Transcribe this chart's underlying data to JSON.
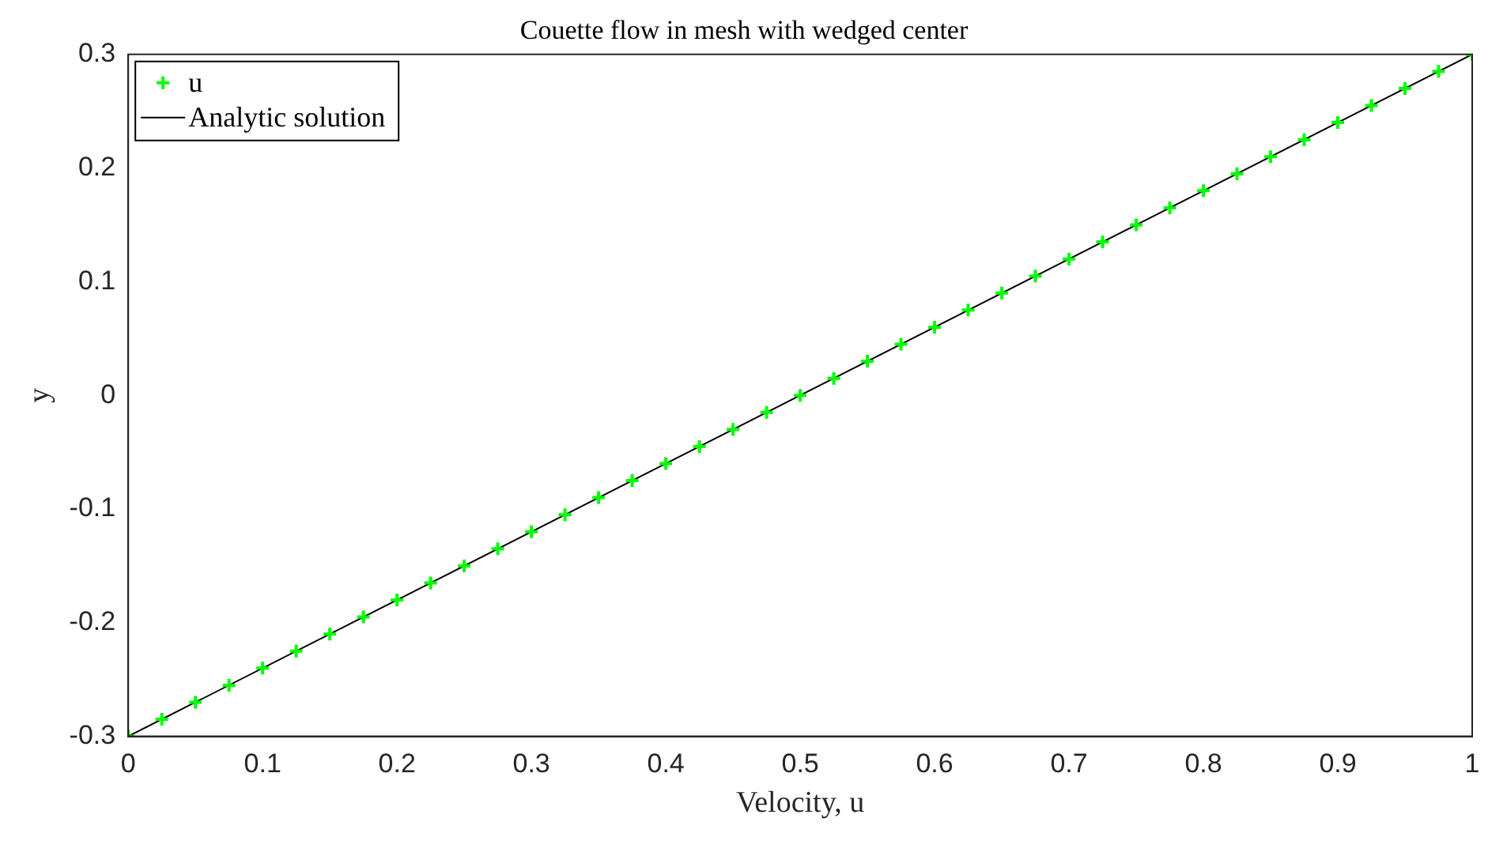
{
  "chart_data": {
    "type": "scatter",
    "title": "Couette flow in mesh with wedged center",
    "xlabel": "Velocity, u",
    "ylabel": "y",
    "xlim": [
      0,
      1
    ],
    "ylim": [
      -0.3,
      0.3
    ],
    "xticks": [
      0,
      0.1,
      0.2,
      0.3,
      0.4,
      0.5,
      0.6,
      0.7,
      0.8,
      0.9,
      1
    ],
    "yticks": [
      -0.3,
      -0.2,
      -0.1,
      0,
      0.1,
      0.2,
      0.3
    ],
    "grid": false,
    "legend": "top left",
    "series": [
      {
        "name": "u",
        "type": "scatter",
        "color": "#00ff00",
        "marker": "cross",
        "x": [
          0,
          0.025,
          0.05,
          0.075,
          0.1,
          0.125,
          0.15,
          0.175,
          0.2,
          0.225,
          0.25,
          0.275,
          0.3,
          0.325,
          0.35,
          0.375,
          0.4,
          0.425,
          0.45,
          0.475,
          0.5,
          0.525,
          0.55,
          0.575,
          0.6,
          0.625,
          0.65,
          0.675,
          0.7,
          0.725,
          0.75,
          0.775,
          0.8,
          0.825,
          0.85,
          0.875,
          0.9,
          0.925,
          0.95,
          0.975,
          1
        ],
        "values": [
          -0.3,
          -0.285,
          -0.27,
          -0.255,
          -0.24,
          -0.225,
          -0.21,
          -0.195,
          -0.18,
          -0.165,
          -0.15,
          -0.135,
          -0.12,
          -0.105,
          -0.09,
          -0.075,
          -0.06,
          -0.045,
          -0.03,
          -0.015,
          0,
          0.015,
          0.03,
          0.045,
          0.06,
          0.075,
          0.09,
          0.105,
          0.12,
          0.135,
          0.15,
          0.165,
          0.18,
          0.195,
          0.21,
          0.225,
          0.24,
          0.255,
          0.27,
          0.285,
          0.3
        ]
      },
      {
        "name": "Analytic solution",
        "type": "line",
        "color": "#000000",
        "marker": "none",
        "x": [
          0,
          1
        ],
        "values": [
          -0.3,
          0.3
        ]
      }
    ]
  }
}
